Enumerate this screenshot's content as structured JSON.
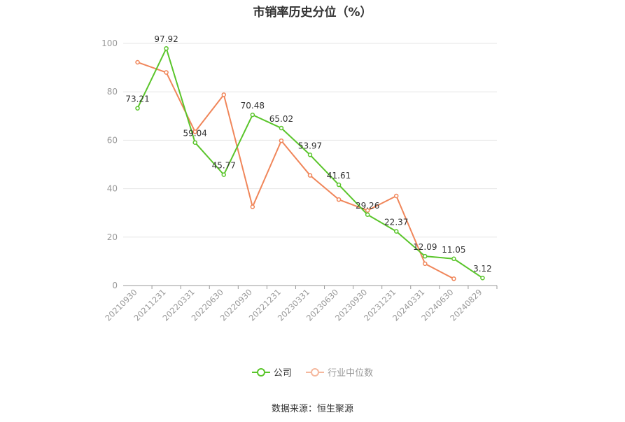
{
  "title": "市销率历史分位（%）",
  "source": "数据来源：恒生聚源",
  "colors": {
    "company": "#5ac52b",
    "industry": "#f0865a",
    "grid": "#e6e6e6",
    "axis_text": "#999999"
  },
  "legend": [
    {
      "label": "公司",
      "color": "#5ac52b",
      "icon": "circle-line-icon"
    },
    {
      "label": "行业中位数",
      "color": "#f5b89e",
      "icon": "circle-line-icon"
    }
  ],
  "chart_data": {
    "type": "line",
    "title": "市销率历史分位（%）",
    "xlabel": "",
    "ylabel": "",
    "ylim": [
      0,
      100
    ],
    "yticks": [
      0,
      20,
      40,
      60,
      80,
      100
    ],
    "grid": true,
    "legend_position": "bottom",
    "categories": [
      "20210930",
      "20211231",
      "20220331",
      "20220630",
      "20220930",
      "20221231",
      "20230331",
      "20230630",
      "20230930",
      "20231231",
      "20240331",
      "20240630",
      "20240829"
    ],
    "series": [
      {
        "name": "公司",
        "color": "#5ac52b",
        "values": [
          73.21,
          97.92,
          59.04,
          45.77,
          70.48,
          65.02,
          53.97,
          41.61,
          29.26,
          22.37,
          12.09,
          11.05,
          3.12
        ],
        "labels": [
          "73.21",
          "97.92",
          "59.04",
          "45.77",
          "70.48",
          "65.02",
          "53.97",
          "41.61",
          "29.26",
          "22.37",
          "12.09",
          "11.05",
          "3.12"
        ]
      },
      {
        "name": "行业中位数",
        "color": "#f0865a",
        "values": [
          92.2,
          88.0,
          63.5,
          78.8,
          32.5,
          59.8,
          45.5,
          35.5,
          31.0,
          37.0,
          9.0,
          2.8,
          null
        ]
      }
    ]
  }
}
